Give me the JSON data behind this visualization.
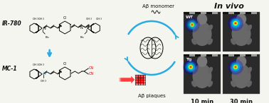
{
  "background_color": "#f5f5f0",
  "title_text": "In vivo",
  "label_IR780": "IR-780",
  "label_MC1": "MC-1",
  "label_abeta_monomer": "Aβ monomer",
  "label_abeta_plaques": "Aβ plaques",
  "label_wt": "WT",
  "label_tg": "Tg",
  "label_10min": "10 min",
  "label_30min": "30 min",
  "blue_color": "#29abe2",
  "cn_color": "#dd0000",
  "dark_color": "#111111",
  "panel_bg": "#3a3a3a",
  "fig_width": 3.78,
  "fig_height": 1.46,
  "dpi": 100
}
